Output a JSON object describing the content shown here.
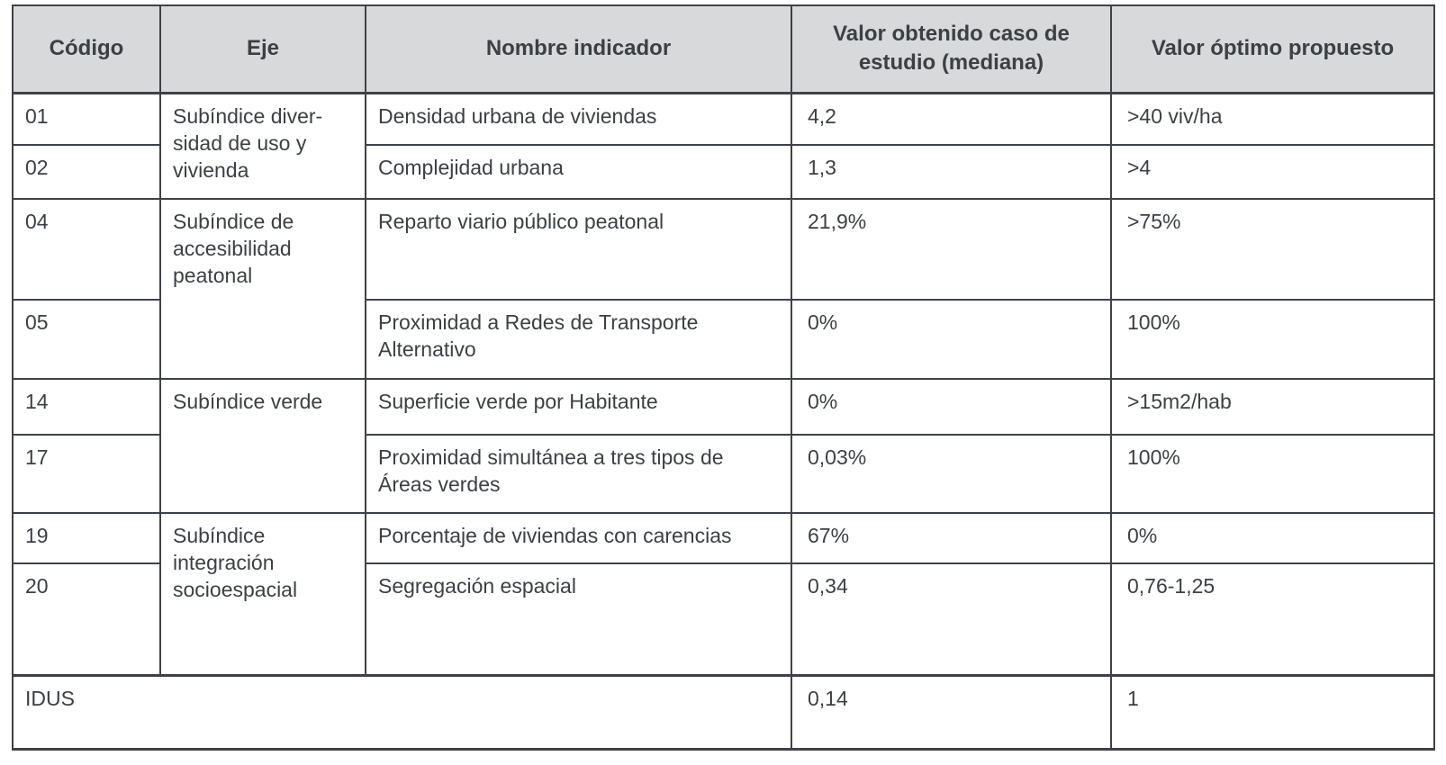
{
  "colors": {
    "header_background": "#d8d9da",
    "border": "#3e4248",
    "text": "#3c4045"
  },
  "table": {
    "headers": {
      "codigo": "Código",
      "eje": "Eje",
      "indicador": "Nombre indicador",
      "valor_obtenido": "Valor obtenido caso de estudio (mediana)",
      "valor_optimo": "Valor óptimo propuesto"
    },
    "groups": [
      {
        "eje": "Subíndice diver-\nsidad de uso y\nvivienda",
        "rows": [
          {
            "codigo": "01",
            "indicador": "Densidad urbana de viviendas",
            "valor_obtenido": "4,2",
            "valor_optimo": ">40 viv/ha"
          },
          {
            "codigo": "02",
            "indicador": "Complejidad urbana",
            "valor_obtenido": "1,3",
            "valor_optimo": ">4"
          }
        ]
      },
      {
        "eje": "Subíndice de\naccesibilidad\npeatonal",
        "rows": [
          {
            "codigo": "04",
            "indicador": "Reparto viario público peatonal",
            "valor_obtenido": "21,9%",
            "valor_optimo": ">75%"
          },
          {
            "codigo": "05",
            "indicador": "Proximidad a Redes de Transporte\nAlternativo",
            "valor_obtenido": "0%",
            "valor_optimo": "100%"
          }
        ]
      },
      {
        "eje": "Subíndice verde",
        "rows": [
          {
            "codigo": "14",
            "indicador": "Superficie verde por Habitante",
            "valor_obtenido": "0%",
            "valor_optimo": ">15m2/hab"
          },
          {
            "codigo": "17",
            "indicador": "Proximidad simultánea a tres tipos de\nÁreas verdes",
            "valor_obtenido": "0,03%",
            "valor_optimo": "100%"
          }
        ]
      },
      {
        "eje": "Subíndice\nintegración\nsocioespacial",
        "rows": [
          {
            "codigo": "19",
            "indicador": "Porcentaje de viviendas con carencias",
            "valor_obtenido": "67%",
            "valor_optimo": "0%"
          },
          {
            "codigo": "20",
            "indicador": "Segregación espacial",
            "valor_obtenido": "0,34",
            "valor_optimo": "0,76-1,25"
          }
        ]
      }
    ],
    "summary": {
      "label": "IDUS",
      "valor_obtenido": "0,14",
      "valor_optimo": "1"
    }
  }
}
